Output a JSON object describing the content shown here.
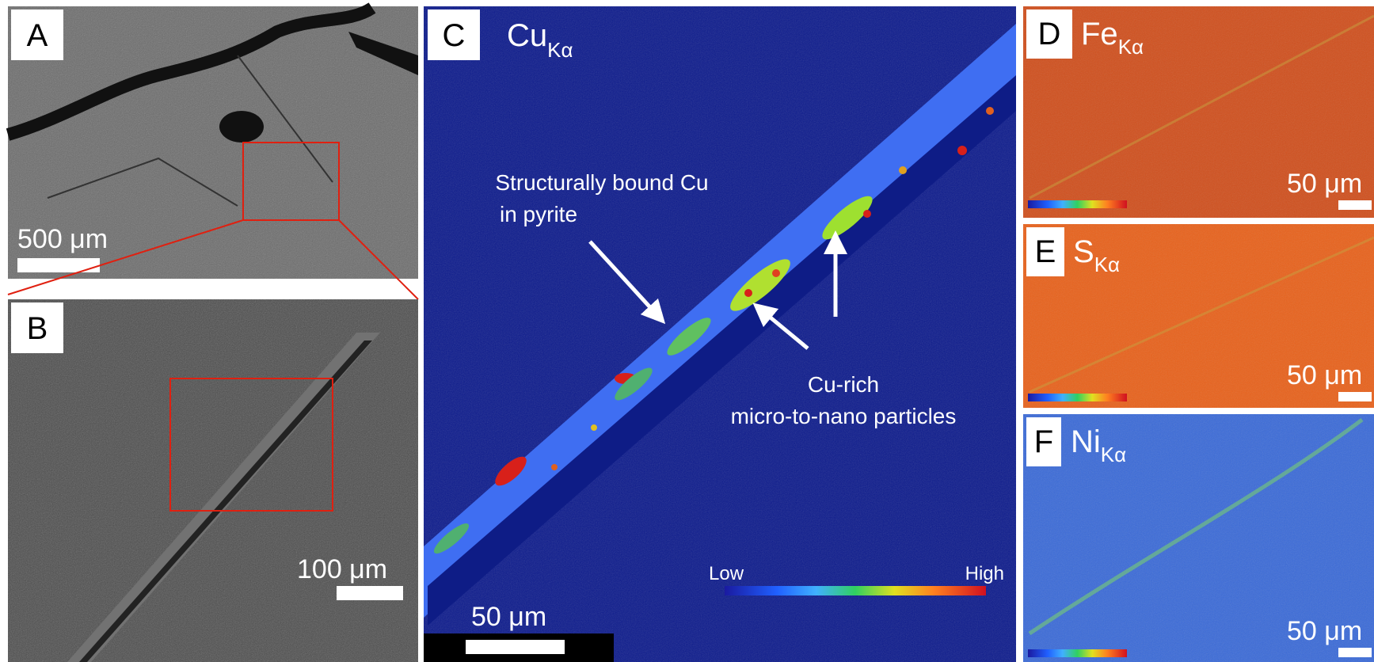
{
  "panels": [
    {
      "label": "A",
      "scale_bar": "500 μm"
    },
    {
      "label": "B",
      "scale_bar": "100 μm"
    },
    {
      "label": "C",
      "element": "Cu",
      "line": "Kα",
      "scale_bar": "50 μm",
      "colorbar": {
        "low": "Low",
        "high": "High"
      },
      "annotations": [
        {
          "lines": [
            "Structurally bound Cu",
            "in pyrite"
          ]
        },
        {
          "lines": [
            "Cu-rich",
            "micro-to-nano particles"
          ]
        }
      ]
    },
    {
      "label": "D",
      "element": "Fe",
      "line": "Kα",
      "scale_bar": "50 μm"
    },
    {
      "label": "E",
      "element": "S",
      "line": "Kα",
      "scale_bar": "50 μm"
    },
    {
      "label": "F",
      "element": "Ni",
      "line": "Kα",
      "scale_bar": "50 μm"
    }
  ]
}
